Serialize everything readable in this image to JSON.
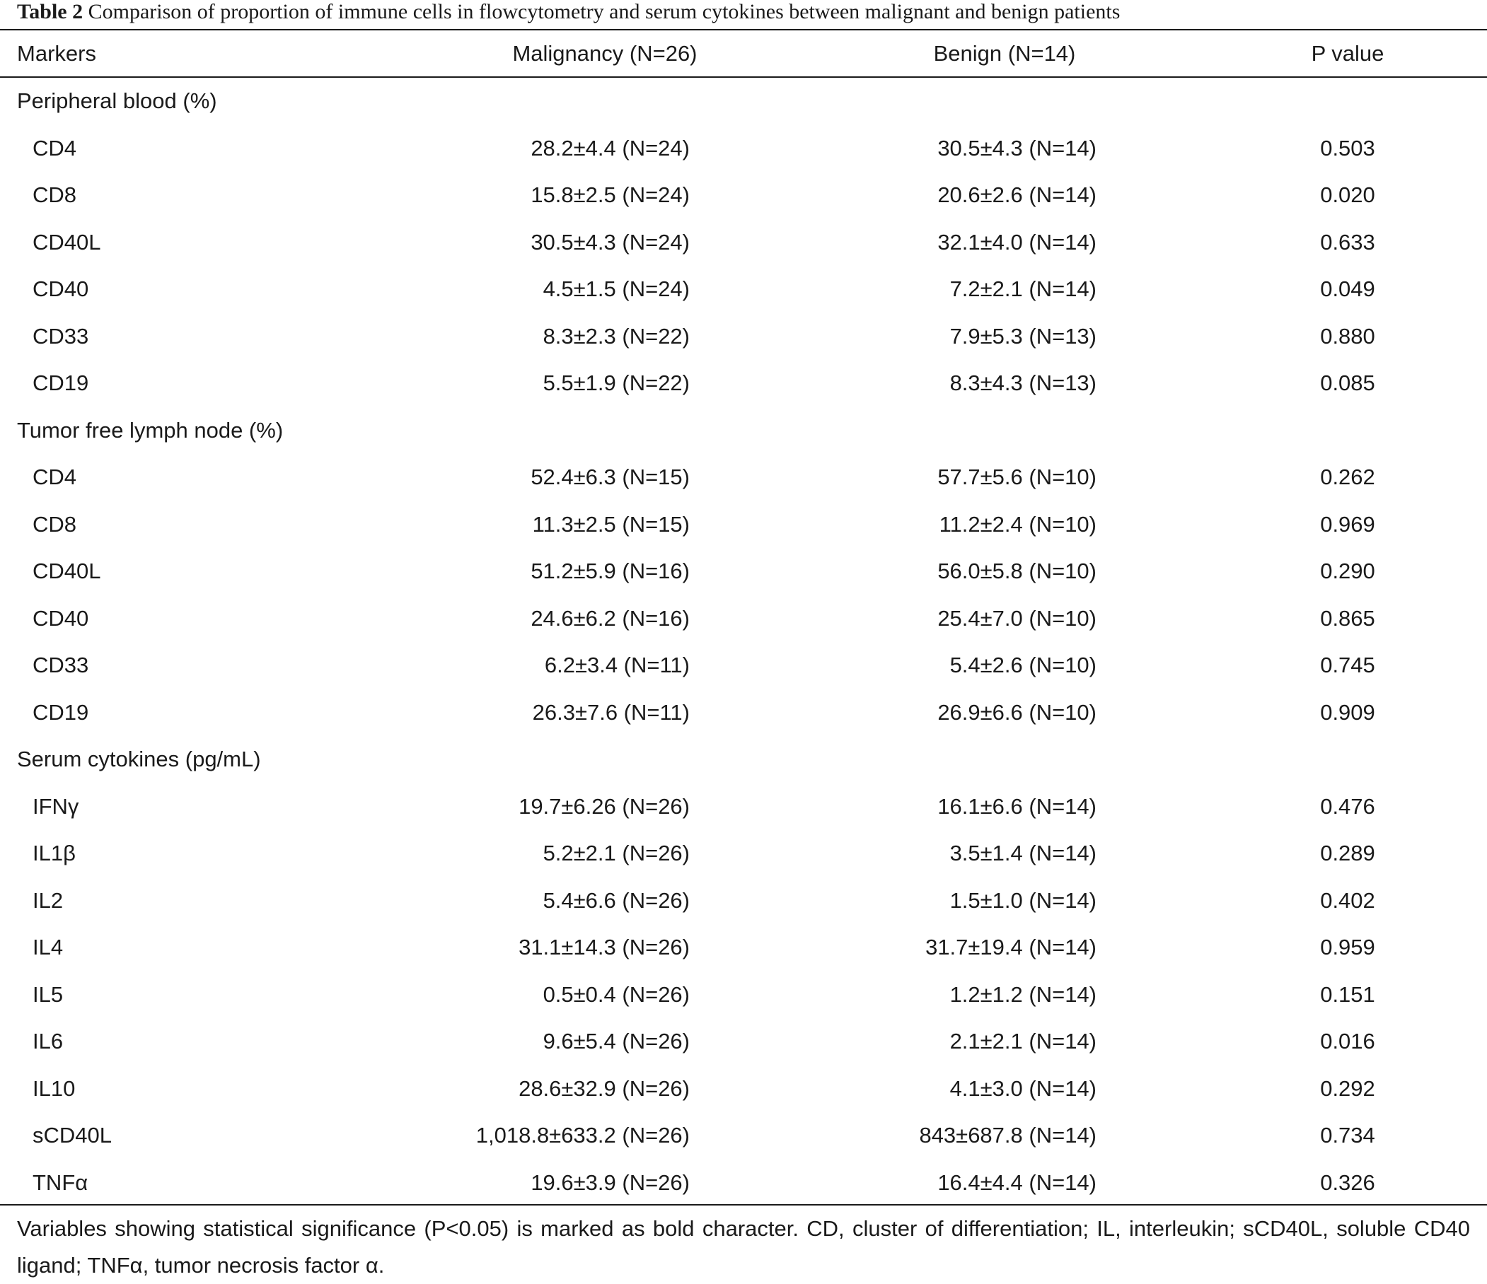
{
  "caption": {
    "label": "Table 2",
    "text": "Comparison of proportion of immune cells in flowcytometry and serum cytokines between malignant and benign patients"
  },
  "header": {
    "markers": "Markers",
    "malignancy": "Malignancy (N=26)",
    "benign": "Benign (N=14)",
    "pvalue": "P value"
  },
  "sections": [
    {
      "title": "Peripheral blood (%)",
      "rows": [
        {
          "marker": "CD4",
          "malignancy": "28.2±4.4 (N=24)",
          "benign": "30.5±4.3 (N=14)",
          "p": "0.503"
        },
        {
          "marker": "CD8",
          "malignancy": "15.8±2.5 (N=24)",
          "benign": "20.6±2.6 (N=14)",
          "p": "0.020"
        },
        {
          "marker": "CD40L",
          "malignancy": "30.5±4.3 (N=24)",
          "benign": "32.1±4.0 (N=14)",
          "p": "0.633"
        },
        {
          "marker": "CD40",
          "malignancy": "4.5±1.5 (N=24)",
          "benign": "7.2±2.1 (N=14)",
          "p": "0.049"
        },
        {
          "marker": "CD33",
          "malignancy": "8.3±2.3 (N=22)",
          "benign": "7.9±5.3 (N=13)",
          "p": "0.880"
        },
        {
          "marker": "CD19",
          "malignancy": "5.5±1.9 (N=22)",
          "benign": "8.3±4.3 (N=13)",
          "p": "0.085"
        }
      ]
    },
    {
      "title": "Tumor free lymph node (%)",
      "rows": [
        {
          "marker": "CD4",
          "malignancy": "52.4±6.3 (N=15)",
          "benign": "57.7±5.6 (N=10)",
          "p": "0.262"
        },
        {
          "marker": "CD8",
          "malignancy": "11.3±2.5 (N=15)",
          "benign": "11.2±2.4 (N=10)",
          "p": "0.969"
        },
        {
          "marker": "CD40L",
          "malignancy": "51.2±5.9 (N=16)",
          "benign": "56.0±5.8 (N=10)",
          "p": "0.290"
        },
        {
          "marker": "CD40",
          "malignancy": "24.6±6.2 (N=16)",
          "benign": "25.4±7.0 (N=10)",
          "p": "0.865"
        },
        {
          "marker": "CD33",
          "malignancy": "6.2±3.4 (N=11)",
          "benign": "5.4±2.6 (N=10)",
          "p": "0.745"
        },
        {
          "marker": "CD19",
          "malignancy": "26.3±7.6 (N=11)",
          "benign": "26.9±6.6 (N=10)",
          "p": "0.909"
        }
      ]
    },
    {
      "title": "Serum cytokines (pg/mL)",
      "rows": [
        {
          "marker": "IFNγ",
          "malignancy": "19.7±6.26 (N=26)",
          "benign": "16.1±6.6 (N=14)",
          "p": "0.476"
        },
        {
          "marker": "IL1β",
          "malignancy": "5.2±2.1 (N=26)",
          "benign": "3.5±1.4 (N=14)",
          "p": "0.289"
        },
        {
          "marker": "IL2",
          "malignancy": "5.4±6.6 (N=26)",
          "benign": "1.5±1.0 (N=14)",
          "p": "0.402"
        },
        {
          "marker": "IL4",
          "malignancy": "31.1±14.3 (N=26)",
          "benign": "31.7±19.4 (N=14)",
          "p": "0.959"
        },
        {
          "marker": "IL5",
          "malignancy": "0.5±0.4 (N=26)",
          "benign": "1.2±1.2 (N=14)",
          "p": "0.151"
        },
        {
          "marker": "IL6",
          "malignancy": "9.6±5.4 (N=26)",
          "benign": "2.1±2.1 (N=14)",
          "p": "0.016"
        },
        {
          "marker": "IL10",
          "malignancy": "28.6±32.9 (N=26)",
          "benign": "4.1±3.0 (N=14)",
          "p": "0.292"
        },
        {
          "marker": "sCD40L",
          "malignancy": "1,018.8±633.2 (N=26)",
          "benign": "843±687.8 (N=14)",
          "p": "0.734"
        },
        {
          "marker": "TNFα",
          "malignancy": "19.6±3.9 (N=26)",
          "benign": "16.4±4.4 (N=14)",
          "p": "0.326"
        }
      ]
    }
  ],
  "footnote": "Variables showing statistical significance (P<0.05) is marked as bold character. CD, cluster of differentiation; IL, interleukin; sCD40L, soluble CD40 ligand; TNFα, tumor necrosis factor α."
}
